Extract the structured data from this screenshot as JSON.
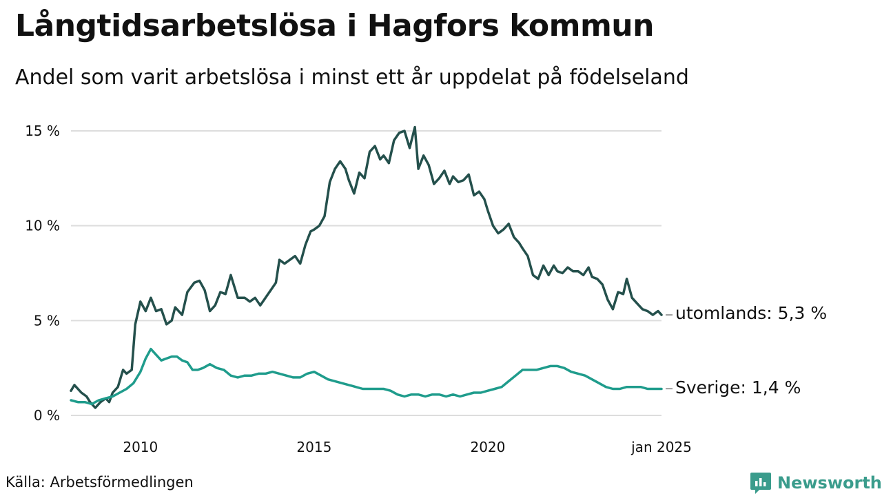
{
  "header": {
    "title": "Långtidsarbetslösa i Hagfors kommun",
    "subtitle": "Andel som varit arbetslösa i minst ett år uppdelat på födelseland"
  },
  "footer": {
    "source": "Källa: Arbetsförmedlingen",
    "brand": "Newsworthy"
  },
  "colors": {
    "utomlands": "#24504c",
    "sverige": "#1f9c8c",
    "grid": "#dddddd",
    "brand": "#3a9c8c"
  },
  "chart_data": {
    "type": "line",
    "title": "Långtidsarbetslösa i Hagfors kommun",
    "subtitle": "Andel som varit arbetslösa i minst ett år uppdelat på födelseland",
    "xlabel": "",
    "ylabel": "",
    "ylim": [
      0,
      15
    ],
    "xlim": [
      2008.0,
      2025.0
    ],
    "yticks": [
      {
        "value": 0,
        "label": "0 %"
      },
      {
        "value": 5,
        "label": "5 %"
      },
      {
        "value": 10,
        "label": "10 %"
      },
      {
        "value": 15,
        "label": "15 %"
      }
    ],
    "xticks": [
      {
        "value": 2010.0,
        "label": "2010"
      },
      {
        "value": 2015.0,
        "label": "2015"
      },
      {
        "value": 2020.0,
        "label": "2020"
      },
      {
        "value": 2025.0,
        "label": "jan 2025"
      }
    ],
    "grid": true,
    "series": [
      {
        "name": "utomlands",
        "end_label": "utomlands: 5,3 %",
        "x": [
          2008.0,
          2008.1,
          2008.3,
          2008.45,
          2008.55,
          2008.7,
          2008.85,
          2009.0,
          2009.1,
          2009.2,
          2009.35,
          2009.5,
          2009.6,
          2009.75,
          2009.85,
          2010.0,
          2010.15,
          2010.3,
          2010.45,
          2010.6,
          2010.75,
          2010.9,
          2011.0,
          2011.2,
          2011.35,
          2011.55,
          2011.7,
          2011.85,
          2012.0,
          2012.15,
          2012.3,
          2012.45,
          2012.6,
          2012.8,
          2013.0,
          2013.15,
          2013.3,
          2013.45,
          2013.6,
          2013.75,
          2013.9,
          2014.0,
          2014.15,
          2014.3,
          2014.45,
          2014.6,
          2014.75,
          2014.9,
          2015.0,
          2015.15,
          2015.3,
          2015.45,
          2015.6,
          2015.75,
          2015.9,
          2016.0,
          2016.15,
          2016.3,
          2016.45,
          2016.6,
          2016.75,
          2016.9,
          2017.0,
          2017.15,
          2017.3,
          2017.45,
          2017.6,
          2017.75,
          2017.9,
          2018.0,
          2018.15,
          2018.3,
          2018.45,
          2018.6,
          2018.75,
          2018.9,
          2019.0,
          2019.15,
          2019.3,
          2019.45,
          2019.6,
          2019.75,
          2019.9,
          2020.0,
          2020.15,
          2020.3,
          2020.45,
          2020.6,
          2020.75,
          2020.9,
          2021.0,
          2021.15,
          2021.3,
          2021.45,
          2021.6,
          2021.75,
          2021.9,
          2022.0,
          2022.15,
          2022.3,
          2022.45,
          2022.6,
          2022.75,
          2022.9,
          2023.0,
          2023.15,
          2023.3,
          2023.45,
          2023.6,
          2023.75,
          2023.9,
          2024.0,
          2024.15,
          2024.3,
          2024.45,
          2024.6,
          2024.75,
          2024.9,
          2025.0
        ],
        "values": [
          1.3,
          1.6,
          1.2,
          1.0,
          0.7,
          0.4,
          0.7,
          0.9,
          0.7,
          1.2,
          1.5,
          2.4,
          2.2,
          2.4,
          4.8,
          6.0,
          5.5,
          6.2,
          5.5,
          5.6,
          4.8,
          5.0,
          5.7,
          5.3,
          6.5,
          7.0,
          7.1,
          6.6,
          5.5,
          5.8,
          6.5,
          6.4,
          7.4,
          6.2,
          6.2,
          6.0,
          6.2,
          5.8,
          6.2,
          6.6,
          7.0,
          8.2,
          8.0,
          8.2,
          8.4,
          8.0,
          9.0,
          9.7,
          9.8,
          10.0,
          10.5,
          12.3,
          13.0,
          13.4,
          13.0,
          12.4,
          11.7,
          12.8,
          12.5,
          13.9,
          14.2,
          13.5,
          13.7,
          13.3,
          14.5,
          14.9,
          15.0,
          14.1,
          15.2,
          13.0,
          13.7,
          13.2,
          12.2,
          12.5,
          12.9,
          12.2,
          12.6,
          12.3,
          12.4,
          12.7,
          11.6,
          11.8,
          11.4,
          10.8,
          10.0,
          9.6,
          9.8,
          10.1,
          9.4,
          9.1,
          8.8,
          8.4,
          7.4,
          7.2,
          7.9,
          7.4,
          7.9,
          7.6,
          7.5,
          7.8,
          7.6,
          7.6,
          7.4,
          7.8,
          7.3,
          7.2,
          6.9,
          6.1,
          5.6,
          6.5,
          6.4,
          7.2,
          6.2,
          5.9,
          5.6,
          5.5,
          5.3,
          5.5,
          5.3
        ],
        "color": "#24504c"
      },
      {
        "name": "Sverige",
        "end_label": "Sverige: 1,4 %",
        "x": [
          2008.0,
          2008.2,
          2008.4,
          2008.6,
          2008.8,
          2009.0,
          2009.2,
          2009.4,
          2009.6,
          2009.8,
          2010.0,
          2010.15,
          2010.3,
          2010.45,
          2010.6,
          2010.75,
          2010.9,
          2011.05,
          2011.2,
          2011.35,
          2011.5,
          2011.65,
          2011.8,
          2012.0,
          2012.2,
          2012.4,
          2012.6,
          2012.8,
          2013.0,
          2013.2,
          2013.4,
          2013.6,
          2013.8,
          2014.0,
          2014.2,
          2014.4,
          2014.6,
          2014.8,
          2015.0,
          2015.2,
          2015.4,
          2015.6,
          2015.8,
          2016.0,
          2016.2,
          2016.4,
          2016.6,
          2016.8,
          2017.0,
          2017.2,
          2017.4,
          2017.6,
          2017.8,
          2018.0,
          2018.2,
          2018.4,
          2018.6,
          2018.8,
          2019.0,
          2019.2,
          2019.4,
          2019.6,
          2019.8,
          2020.0,
          2020.2,
          2020.4,
          2020.6,
          2020.8,
          2021.0,
          2021.2,
          2021.4,
          2021.6,
          2021.8,
          2022.0,
          2022.2,
          2022.4,
          2022.6,
          2022.8,
          2023.0,
          2023.2,
          2023.4,
          2023.6,
          2023.8,
          2024.0,
          2024.2,
          2024.4,
          2024.6,
          2024.8,
          2025.0
        ],
        "values": [
          0.8,
          0.7,
          0.7,
          0.6,
          0.8,
          0.9,
          1.0,
          1.2,
          1.4,
          1.7,
          2.3,
          3.0,
          3.5,
          3.2,
          2.9,
          3.0,
          3.1,
          3.1,
          2.9,
          2.8,
          2.4,
          2.4,
          2.5,
          2.7,
          2.5,
          2.4,
          2.1,
          2.0,
          2.1,
          2.1,
          2.2,
          2.2,
          2.3,
          2.2,
          2.1,
          2.0,
          2.0,
          2.2,
          2.3,
          2.1,
          1.9,
          1.8,
          1.7,
          1.6,
          1.5,
          1.4,
          1.4,
          1.4,
          1.4,
          1.3,
          1.1,
          1.0,
          1.1,
          1.1,
          1.0,
          1.1,
          1.1,
          1.0,
          1.1,
          1.0,
          1.1,
          1.2,
          1.2,
          1.3,
          1.4,
          1.5,
          1.8,
          2.1,
          2.4,
          2.4,
          2.4,
          2.5,
          2.6,
          2.6,
          2.5,
          2.3,
          2.2,
          2.1,
          1.9,
          1.7,
          1.5,
          1.4,
          1.4,
          1.5,
          1.5,
          1.5,
          1.4,
          1.4,
          1.4
        ],
        "color": "#1f9c8c"
      }
    ]
  }
}
